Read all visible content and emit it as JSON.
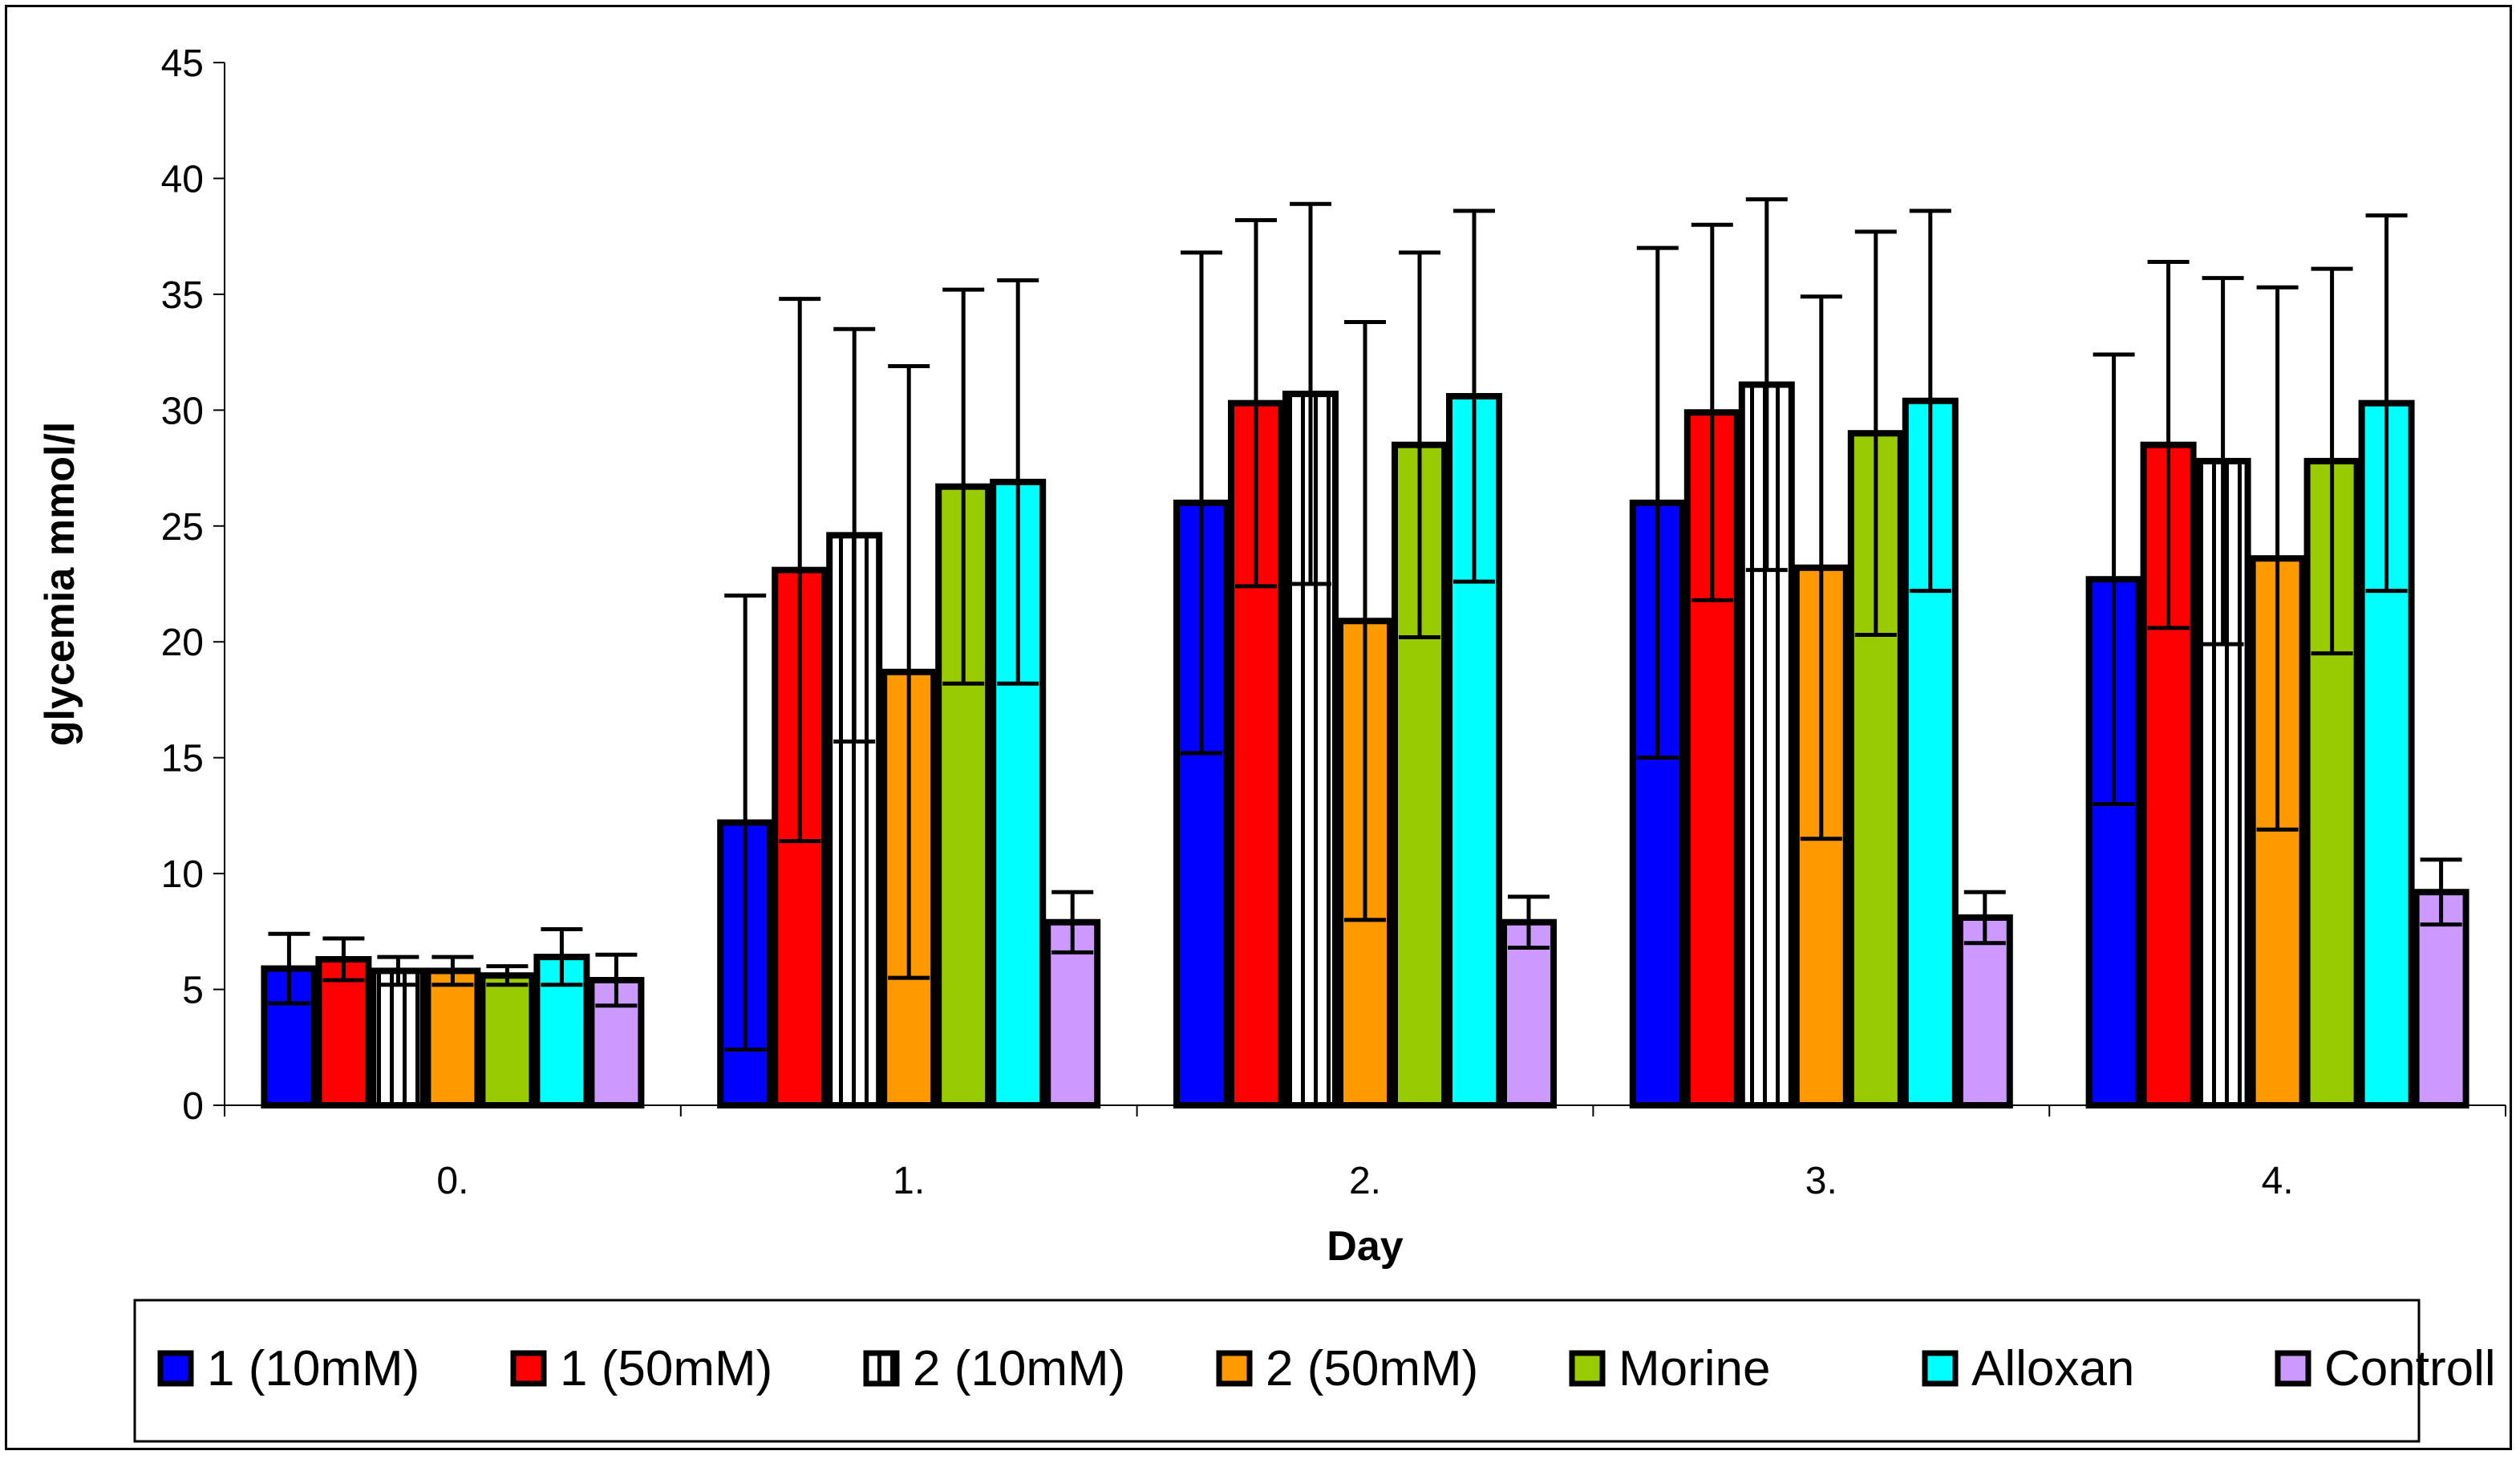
{
  "chart_data": {
    "type": "bar",
    "title": "",
    "xlabel": "Day",
    "ylabel": "glycemia mmol/l",
    "ylim": [
      0,
      45
    ],
    "yticks": [
      0,
      5,
      10,
      15,
      20,
      25,
      30,
      35,
      40,
      45
    ],
    "grid": false,
    "legend_position": "bottom",
    "categories": [
      "0.",
      "1.",
      "2.",
      "3.",
      "4."
    ],
    "series": [
      {
        "name": "1 (10mM)",
        "color": "#0000ff",
        "pattern": "solid",
        "values": [
          5.9,
          12.2,
          26.0,
          26.0,
          22.7
        ],
        "errors": [
          1.5,
          9.8,
          10.8,
          11.0,
          9.7
        ]
      },
      {
        "name": "1 (50mM)",
        "color": "#ff0000",
        "pattern": "solid",
        "values": [
          6.3,
          23.1,
          30.3,
          29.9,
          28.5
        ],
        "errors": [
          0.9,
          11.7,
          7.9,
          8.1,
          7.9
        ]
      },
      {
        "name": "2 (10mM)",
        "color": "#ffffff",
        "pattern": "vertical-stripes",
        "values": [
          5.8,
          24.6,
          30.7,
          31.1,
          27.8
        ],
        "errors": [
          0.6,
          8.9,
          8.2,
          8.0,
          7.9
        ]
      },
      {
        "name": "2 (50mM)",
        "color": "#ff9900",
        "pattern": "solid",
        "values": [
          5.8,
          18.7,
          20.9,
          23.2,
          23.6
        ],
        "errors": [
          0.6,
          13.2,
          12.9,
          11.7,
          11.7
        ]
      },
      {
        "name": "Morine",
        "color": "#99cc00",
        "pattern": "solid",
        "values": [
          5.6,
          26.7,
          28.5,
          29.0,
          27.8
        ],
        "errors": [
          0.4,
          8.5,
          8.3,
          8.7,
          8.3
        ]
      },
      {
        "name": "Alloxan",
        "color": "#00ffff",
        "pattern": "solid",
        "values": [
          6.4,
          26.9,
          30.6,
          30.4,
          30.3
        ],
        "errors": [
          1.2,
          8.7,
          8.0,
          8.2,
          8.1
        ]
      },
      {
        "name": "Controll",
        "color": "#cc99ff",
        "pattern": "solid",
        "values": [
          5.4,
          7.9,
          7.9,
          8.1,
          9.2
        ],
        "errors": [
          1.1,
          1.3,
          1.1,
          1.1,
          1.4
        ]
      }
    ]
  }
}
